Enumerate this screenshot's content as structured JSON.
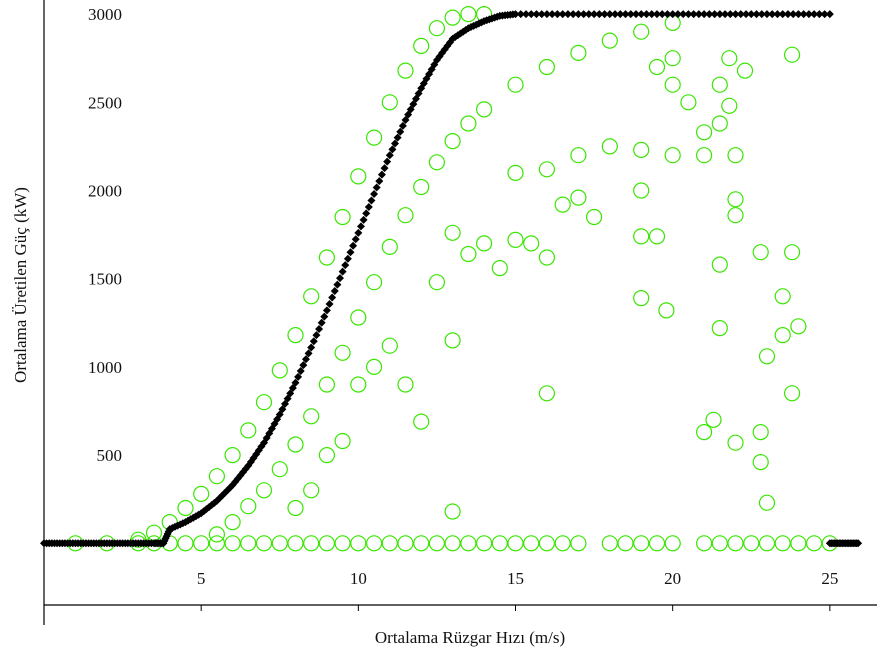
{
  "chart_data": {
    "type": "scatter",
    "title": "",
    "xlabel": "Ortalama Rüzgar Hızı (m/s)",
    "ylabel": "Ortalama Üretilen Güç (kW)",
    "xlim": [
      0,
      26.5
    ],
    "ylim": [
      -350,
      3080
    ],
    "x_ticks": [
      5,
      10,
      15,
      20,
      25
    ],
    "y_ticks": [
      500,
      1000,
      1500,
      2000,
      2500,
      3000
    ],
    "grid": false,
    "colors": {
      "measured": "#39e600",
      "power_curve": "#000000"
    },
    "series": [
      {
        "kind": "measured",
        "marker": "open-circle",
        "points": [
          [
            1.0,
            0
          ],
          [
            2.0,
            0
          ],
          [
            3.0,
            0
          ],
          [
            3.5,
            0
          ],
          [
            4.0,
            0
          ],
          [
            4.5,
            0
          ],
          [
            5.0,
            0
          ],
          [
            5.5,
            0
          ],
          [
            6.0,
            0
          ],
          [
            6.5,
            0
          ],
          [
            7.0,
            0
          ],
          [
            7.5,
            0
          ],
          [
            8.0,
            0
          ],
          [
            8.5,
            0
          ],
          [
            9.0,
            0
          ],
          [
            9.5,
            0
          ],
          [
            10.0,
            0
          ],
          [
            10.5,
            0
          ],
          [
            11.0,
            0
          ],
          [
            11.5,
            0
          ],
          [
            12.0,
            0
          ],
          [
            12.5,
            0
          ],
          [
            13.0,
            0
          ],
          [
            13.5,
            0
          ],
          [
            14.0,
            0
          ],
          [
            14.5,
            0
          ],
          [
            15.0,
            0
          ],
          [
            15.5,
            0
          ],
          [
            16.0,
            0
          ],
          [
            16.5,
            0
          ],
          [
            17.0,
            0
          ],
          [
            18.0,
            0
          ],
          [
            18.5,
            0
          ],
          [
            19.0,
            0
          ],
          [
            19.5,
            0
          ],
          [
            20.0,
            0
          ],
          [
            21.0,
            0
          ],
          [
            21.5,
            0
          ],
          [
            22.0,
            0
          ],
          [
            22.5,
            0
          ],
          [
            23.0,
            0
          ],
          [
            23.5,
            0
          ],
          [
            24.0,
            0
          ],
          [
            24.5,
            0
          ],
          [
            25.0,
            0
          ],
          [
            3.0,
            20
          ],
          [
            3.5,
            60
          ],
          [
            4.0,
            120
          ],
          [
            4.5,
            200
          ],
          [
            5.0,
            280
          ],
          [
            5.5,
            380
          ],
          [
            6.0,
            500
          ],
          [
            6.5,
            640
          ],
          [
            7.0,
            800
          ],
          [
            7.5,
            980
          ],
          [
            8.0,
            1180
          ],
          [
            8.5,
            1400
          ],
          [
            9.0,
            1620
          ],
          [
            9.5,
            1850
          ],
          [
            10.0,
            2080
          ],
          [
            10.5,
            2300
          ],
          [
            11.0,
            2500
          ],
          [
            11.5,
            2680
          ],
          [
            12.0,
            2820
          ],
          [
            12.5,
            2920
          ],
          [
            13.0,
            2980
          ],
          [
            13.5,
            3000
          ],
          [
            14.0,
            3000
          ],
          [
            5.5,
            50
          ],
          [
            6.0,
            120
          ],
          [
            6.5,
            210
          ],
          [
            7.0,
            300
          ],
          [
            7.5,
            420
          ],
          [
            8.0,
            560
          ],
          [
            8.5,
            720
          ],
          [
            9.0,
            900
          ],
          [
            9.5,
            1080
          ],
          [
            10.0,
            1280
          ],
          [
            10.5,
            1480
          ],
          [
            11.0,
            1680
          ],
          [
            11.5,
            1860
          ],
          [
            12.0,
            2020
          ],
          [
            12.5,
            2160
          ],
          [
            13.0,
            2280
          ],
          [
            13.5,
            2380
          ],
          [
            14.0,
            2460
          ],
          [
            15.0,
            2600
          ],
          [
            16.0,
            2700
          ],
          [
            17.0,
            2780
          ],
          [
            18.0,
            2850
          ],
          [
            19.0,
            2900
          ],
          [
            20.0,
            2950
          ],
          [
            8.0,
            200
          ],
          [
            8.5,
            300
          ],
          [
            9.0,
            500
          ],
          [
            9.5,
            580
          ],
          [
            10.0,
            900
          ],
          [
            10.5,
            1000
          ],
          [
            11.0,
            1120
          ],
          [
            11.5,
            900
          ],
          [
            12.0,
            690
          ],
          [
            12.5,
            1480
          ],
          [
            13.0,
            1760
          ],
          [
            13.5,
            1640
          ],
          [
            14.0,
            1700
          ],
          [
            14.5,
            1560
          ],
          [
            15.0,
            1720
          ],
          [
            15.5,
            1700
          ],
          [
            16.0,
            1620
          ],
          [
            16.5,
            1920
          ],
          [
            17.0,
            1960
          ],
          [
            17.5,
            1850
          ],
          [
            13.0,
            1150
          ],
          [
            13.0,
            180
          ],
          [
            16.0,
            850
          ],
          [
            19.0,
            2000
          ],
          [
            19.0,
            1740
          ],
          [
            19.5,
            1740
          ],
          [
            19.0,
            1390
          ],
          [
            19.8,
            1320
          ],
          [
            21.5,
            1220
          ],
          [
            21.5,
            1580
          ],
          [
            22.0,
            1860
          ],
          [
            22.0,
            1950
          ],
          [
            21.3,
            700
          ],
          [
            21.0,
            630
          ],
          [
            22.0,
            570
          ],
          [
            22.8,
            630
          ],
          [
            22.8,
            460
          ],
          [
            23.0,
            230
          ],
          [
            23.0,
            1060
          ],
          [
            23.8,
            850
          ],
          [
            23.5,
            1400
          ],
          [
            23.5,
            1180
          ],
          [
            23.8,
            1650
          ],
          [
            24.0,
            1230
          ],
          [
            22.8,
            1650
          ],
          [
            23.8,
            2770
          ],
          [
            22.3,
            2680
          ],
          [
            21.8,
            2750
          ],
          [
            21.5,
            2600
          ],
          [
            21.8,
            2480
          ],
          [
            21.5,
            2380
          ],
          [
            22.0,
            2200
          ],
          [
            21.0,
            2330
          ],
          [
            21.0,
            2200
          ],
          [
            20.0,
            2200
          ],
          [
            19.0,
            2230
          ],
          [
            18.0,
            2250
          ],
          [
            17.0,
            2200
          ],
          [
            16.0,
            2120
          ],
          [
            15.0,
            2100
          ],
          [
            20.5,
            2500
          ],
          [
            20.0,
            2600
          ],
          [
            19.5,
            2700
          ],
          [
            20.0,
            2750
          ]
        ]
      },
      {
        "kind": "power_curve",
        "marker": "filled-diamond",
        "points": [
          [
            0,
            0
          ],
          [
            0.5,
            0
          ],
          [
            1.0,
            0
          ],
          [
            1.5,
            0
          ],
          [
            2.0,
            0
          ],
          [
            2.5,
            0
          ],
          [
            3.0,
            0
          ],
          [
            3.5,
            0
          ],
          [
            3.8,
            0
          ],
          [
            4.0,
            80
          ],
          [
            4.5,
            120
          ],
          [
            5.0,
            170
          ],
          [
            5.5,
            240
          ],
          [
            6.0,
            330
          ],
          [
            6.5,
            440
          ],
          [
            7.0,
            570
          ],
          [
            7.5,
            730
          ],
          [
            8.0,
            910
          ],
          [
            8.5,
            1110
          ],
          [
            9.0,
            1320
          ],
          [
            9.5,
            1540
          ],
          [
            10.0,
            1760
          ],
          [
            10.5,
            1980
          ],
          [
            11.0,
            2200
          ],
          [
            11.5,
            2400
          ],
          [
            12.0,
            2580
          ],
          [
            12.5,
            2740
          ],
          [
            13.0,
            2860
          ],
          [
            13.5,
            2920
          ],
          [
            14.0,
            2960
          ],
          [
            14.5,
            2990
          ],
          [
            15.0,
            3000
          ],
          [
            16.0,
            3000
          ],
          [
            17.0,
            3000
          ],
          [
            18.0,
            3000
          ],
          [
            19.0,
            3000
          ],
          [
            20.0,
            3000
          ],
          [
            21.0,
            3000
          ],
          [
            22.0,
            3000
          ],
          [
            23.0,
            3000
          ],
          [
            24.0,
            3000
          ],
          [
            25.0,
            3000
          ],
          [
            25.0,
            0
          ],
          [
            25.3,
            0
          ],
          [
            25.6,
            0
          ],
          [
            25.9,
            0
          ]
        ]
      }
    ]
  }
}
